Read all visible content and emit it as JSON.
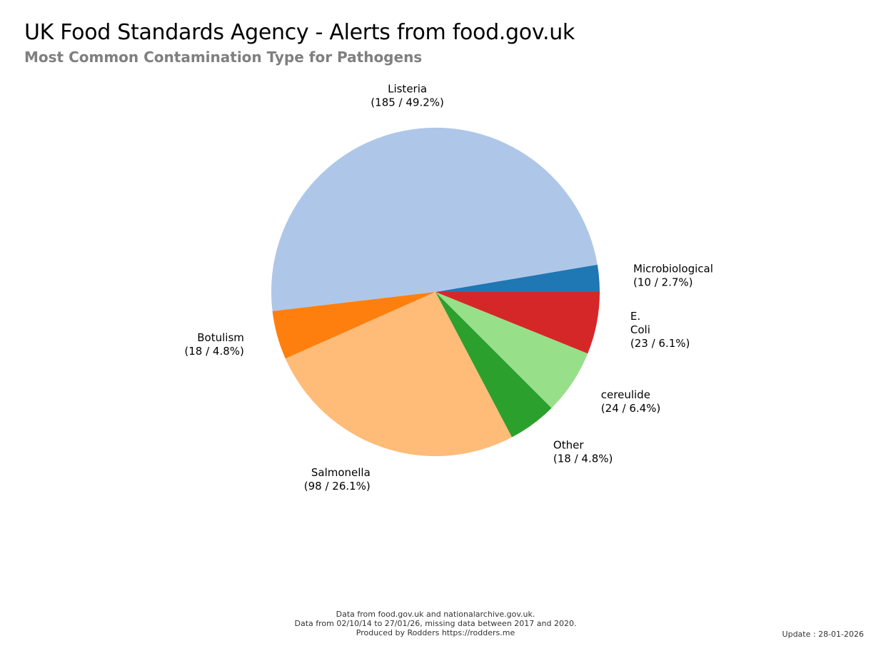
{
  "chart_data": {
    "type": "pie",
    "title": "UK Food Standards Agency - Alerts from food.gov.uk",
    "subtitle": "Most Common Contamination Type for Pathogens",
    "slices": [
      {
        "label": [
          "Microbiological"
        ],
        "value": 10,
        "percent": "2.7%",
        "display": "(10 / 2.7%)",
        "color": "#1f77b4"
      },
      {
        "label": [
          "Listeria"
        ],
        "value": 185,
        "percent": "49.2%",
        "display": "(185 / 49.2%)",
        "color": "#aec7e8"
      },
      {
        "label": [
          "Botulism"
        ],
        "value": 18,
        "percent": "4.8%",
        "display": "(18 / 4.8%)",
        "color": "#ff7f0e"
      },
      {
        "label": [
          "Salmonella"
        ],
        "value": 98,
        "percent": "26.1%",
        "display": "(98 / 26.1%)",
        "color": "#ffbb78"
      },
      {
        "label": [
          "Other"
        ],
        "value": 18,
        "percent": "4.8%",
        "display": "(18 / 4.8%)",
        "color": "#2ca02c"
      },
      {
        "label": [
          "cereulide"
        ],
        "value": 24,
        "percent": "6.4%",
        "display": "(24 / 6.4%)",
        "color": "#98df8a"
      },
      {
        "label": [
          "E.",
          "Coli"
        ],
        "value": 23,
        "percent": "6.1%",
        "display": "(23 / 6.1%)",
        "color": "#d62728"
      }
    ],
    "start_angle_direction": "counterclockwise from 3 o'clock"
  },
  "footer": {
    "line1": "Data from food.gov.uk and nationalarchive.gov.uk.",
    "line2": "Data from 02/10/14 to 27/01/26, missing data between 2017 and 2020.",
    "line3": "Produced by Rodders https://rodders.me"
  },
  "update": "Update : 28-01-2026"
}
